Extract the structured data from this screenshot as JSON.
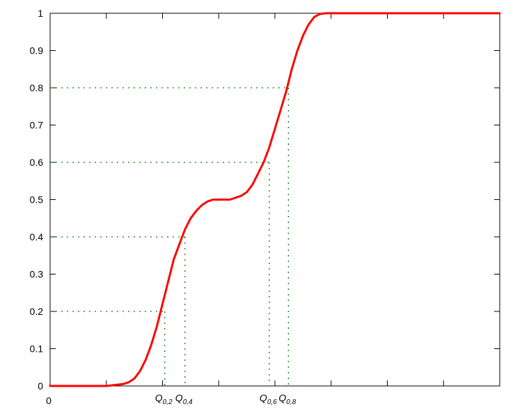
{
  "chart_data": {
    "type": "line",
    "title": "",
    "xlabel": "",
    "ylabel": "",
    "ylim": [
      0,
      1
    ],
    "yticks": [
      "0",
      "0.1",
      "0.2",
      "0.3",
      "0.4",
      "0.5",
      "0.6",
      "0.7",
      "0.8",
      "0.9",
      "1"
    ],
    "xtick_label": "0",
    "grid": false,
    "series": [
      {
        "color": "#ff0000",
        "x": [
          -1.0,
          -0.5,
          -0.35,
          -0.3,
          -0.25,
          -0.2,
          -0.15,
          -0.1,
          -0.05,
          0.0,
          0.05,
          0.1,
          0.15,
          0.2,
          0.25,
          0.3,
          0.35,
          0.4,
          0.45,
          0.5,
          0.55,
          0.6,
          0.65,
          0.7,
          0.75,
          0.8,
          0.85,
          0.9,
          0.95,
          1.0,
          1.05,
          1.1,
          1.15,
          1.2,
          1.25,
          1.3,
          1.35,
          1.4,
          1.45,
          1.5,
          1.55,
          1.6,
          1.65,
          1.7,
          1.75,
          1.8,
          1.9,
          2.0,
          2.5,
          3.0
        ],
        "y": [
          0.0,
          0.0,
          0.005,
          0.01,
          0.02,
          0.04,
          0.07,
          0.11,
          0.16,
          0.22,
          0.28,
          0.34,
          0.38,
          0.42,
          0.45,
          0.47,
          0.485,
          0.495,
          0.5,
          0.5,
          0.5,
          0.5,
          0.505,
          0.51,
          0.52,
          0.54,
          0.57,
          0.6,
          0.64,
          0.69,
          0.74,
          0.79,
          0.85,
          0.9,
          0.94,
          0.97,
          0.99,
          0.998,
          1.0,
          1.0,
          1.0,
          1.0,
          1.0,
          1.0,
          1.0,
          1.0,
          1.0,
          1.0,
          1.0,
          1.0
        ]
      }
    ],
    "quantiles": [
      {
        "level": 0.2,
        "label": "Q",
        "sub": "0,2",
        "x": 0.02
      },
      {
        "level": 0.4,
        "label": "Q",
        "sub": "0,4",
        "x": 0.2
      },
      {
        "level": 0.6,
        "label": "Q",
        "sub": "0,6",
        "x": 0.95
      },
      {
        "level": 0.8,
        "label": "Q",
        "sub": "0,8",
        "x": 1.12
      }
    ],
    "guide_line_color": "#008000"
  }
}
